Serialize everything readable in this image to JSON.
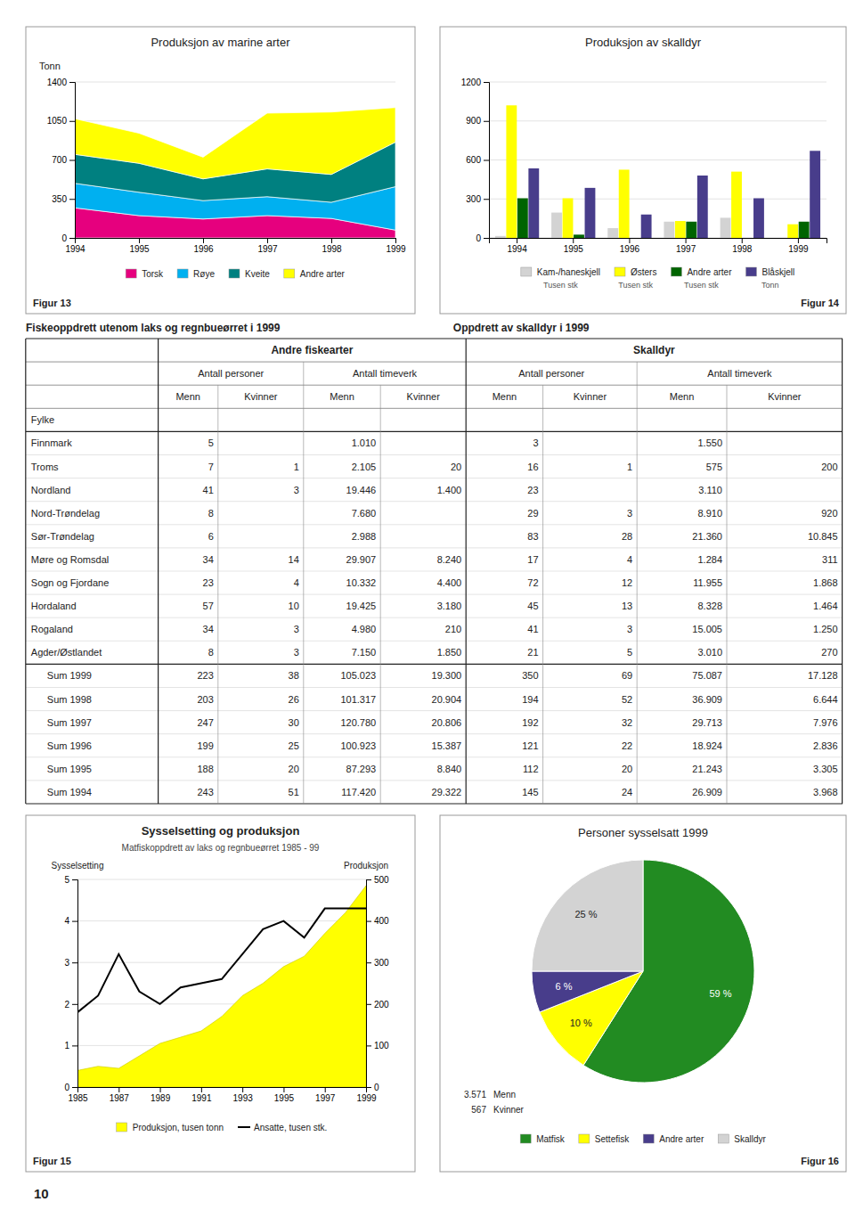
{
  "chart_data": [
    {
      "type": "area",
      "stacked": true,
      "title": "Produksjon av marine arter",
      "y_label": "Tonn",
      "x": [
        1994,
        1995,
        1996,
        1997,
        1998,
        1999
      ],
      "xlim": [
        1994,
        1999
      ],
      "xticks": [
        1994,
        1995,
        1996,
        1997,
        1998,
        1999
      ],
      "ylim": [
        0,
        1400
      ],
      "yticks": [
        0,
        350,
        700,
        1050,
        1400
      ],
      "grid": true,
      "legend": "bottom",
      "series": [
        {
          "name": "Torsk",
          "color": "#e6007e",
          "values": [
            270,
            200,
            170,
            200,
            175,
            70
          ]
        },
        {
          "name": "Røye",
          "color": "#00b0f0",
          "values": [
            220,
            210,
            165,
            170,
            145,
            390
          ]
        },
        {
          "name": "Kveite",
          "color": "#008080",
          "values": [
            260,
            260,
            195,
            250,
            250,
            400
          ]
        },
        {
          "name": "Andre arter",
          "color": "#ffff00",
          "values": [
            320,
            270,
            195,
            500,
            560,
            310
          ]
        }
      ],
      "figure_label": "Figur 13"
    },
    {
      "type": "bar",
      "title": "Produksjon av skalldyr",
      "categories": [
        "1994",
        "1995",
        "1996",
        "1997",
        "1998",
        "1999"
      ],
      "ylim": [
        0,
        1200
      ],
      "yticks": [
        0,
        300,
        600,
        900,
        1200
      ],
      "grid": true,
      "legend": "bottom",
      "series": [
        {
          "name": "Kam-/haneskjell",
          "color": "#d3d3d3",
          "unit": "Tusen stk",
          "values": [
            15,
            195,
            75,
            125,
            155,
            0
          ]
        },
        {
          "name": "Østers",
          "color": "#ffff00",
          "unit": "Tusen stk",
          "values": [
            1020,
            305,
            525,
            130,
            510,
            105
          ]
        },
        {
          "name": "Andre arter",
          "color": "#006400",
          "unit": "Tusen stk",
          "values": [
            305,
            25,
            0,
            125,
            0,
            125
          ]
        },
        {
          "name": "Blåskjell",
          "color": "#483d8b",
          "unit": "Tonn",
          "values": [
            535,
            385,
            180,
            480,
            305,
            670
          ]
        }
      ],
      "figure_label": "Figur 14"
    },
    {
      "type": "table",
      "title": "Fiskeoppdrett utenom laks og regnbueørret i 1999",
      "subtitle": "Oppdrett av skalldyr i 1999",
      "header": [
        [
          "Andre fiskearter",
          "Skalldyr"
        ],
        [
          "Antall personer",
          "Antall timeverk",
          "Antall personer",
          "Antall timeverk"
        ],
        [
          "Menn",
          "Kvinner",
          "Menn",
          "Kvinner",
          "Menn",
          "Kvinner",
          "Menn",
          "Kvinner"
        ]
      ],
      "row_header": "Fylke",
      "rows": [
        {
          "name": "Finnmark",
          "values": [
            5,
            null,
            1010,
            null,
            3,
            null,
            1550,
            null
          ],
          "value_labels": [
            "5",
            null,
            "1.010",
            null,
            "3",
            null,
            "1.550",
            null
          ]
        },
        {
          "name": "Troms",
          "values": [
            7,
            1,
            2105,
            20,
            16,
            1,
            575,
            200
          ],
          "value_labels": [
            "7",
            "1",
            "2.105",
            "20",
            "16",
            "1",
            "575",
            "200"
          ]
        },
        {
          "name": "Nordland",
          "values": [
            41,
            3,
            19446,
            1400,
            23,
            null,
            3110,
            null
          ],
          "value_labels": [
            "41",
            "3",
            "19.446",
            "1.400",
            "23",
            null,
            "3.110",
            null
          ]
        },
        {
          "name": "Nord-Trøndelag",
          "values": [
            8,
            null,
            7680,
            null,
            29,
            3,
            8910,
            920
          ],
          "value_labels": [
            "8",
            null,
            "7.680",
            null,
            "29",
            "3",
            "8.910",
            "920"
          ]
        },
        {
          "name": "Sør-Trøndelag",
          "values": [
            6,
            null,
            2988,
            null,
            83,
            28,
            21360,
            10845
          ],
          "value_labels": [
            "6",
            null,
            "2.988",
            null,
            "83",
            "28",
            "21.360",
            "10.845"
          ]
        },
        {
          "name": "Møre og Romsdal",
          "values": [
            34,
            14,
            29907,
            8240,
            17,
            4,
            1284,
            311
          ],
          "value_labels": [
            "34",
            "14",
            "29.907",
            "8.240",
            "17",
            "4",
            "1.284",
            "311"
          ]
        },
        {
          "name": "Sogn og Fjordane",
          "values": [
            23,
            4,
            10332,
            4400,
            72,
            12,
            11955,
            1868
          ],
          "value_labels": [
            "23",
            "4",
            "10.332",
            "4.400",
            "72",
            "12",
            "11.955",
            "1.868"
          ]
        },
        {
          "name": "Hordaland",
          "values": [
            57,
            10,
            19425,
            3180,
            45,
            13,
            8328,
            1464
          ],
          "value_labels": [
            "57",
            "10",
            "19.425",
            "3.180",
            "45",
            "13",
            "8.328",
            "1.464"
          ]
        },
        {
          "name": "Rogaland",
          "values": [
            34,
            3,
            4980,
            210,
            41,
            3,
            15005,
            1250
          ],
          "value_labels": [
            "34",
            "3",
            "4.980",
            "210",
            "41",
            "3",
            "15.005",
            "1.250"
          ]
        },
        {
          "name": "Agder/Østlandet",
          "values": [
            8,
            3,
            7150,
            1850,
            21,
            5,
            3010,
            270
          ],
          "value_labels": [
            "8",
            "3",
            "7.150",
            "1.850",
            "21",
            "5",
            "3.010",
            "270"
          ]
        }
      ],
      "sum_rows": [
        {
          "name": "Sum 1999",
          "values": [
            223,
            38,
            105023,
            19300,
            350,
            69,
            75087,
            17128
          ],
          "value_labels": [
            "223",
            "38",
            "105.023",
            "19.300",
            "350",
            "69",
            "75.087",
            "17.128"
          ]
        },
        {
          "name": "Sum 1998",
          "values": [
            203,
            26,
            101317,
            20904,
            194,
            52,
            36909,
            6644
          ],
          "value_labels": [
            "203",
            "26",
            "101.317",
            "20.904",
            "194",
            "52",
            "36.909",
            "6.644"
          ]
        },
        {
          "name": "Sum 1997",
          "values": [
            247,
            30,
            120780,
            20806,
            192,
            32,
            29713,
            7976
          ],
          "value_labels": [
            "247",
            "30",
            "120.780",
            "20.806",
            "192",
            "32",
            "29.713",
            "7.976"
          ]
        },
        {
          "name": "Sum 1996",
          "values": [
            199,
            25,
            100923,
            15387,
            121,
            22,
            18924,
            2836
          ],
          "value_labels": [
            "199",
            "25",
            "100.923",
            "15.387",
            "121",
            "22",
            "18.924",
            "2.836"
          ]
        },
        {
          "name": "Sum 1995",
          "values": [
            188,
            20,
            87293,
            8840,
            112,
            20,
            21243,
            3305
          ],
          "value_labels": [
            "188",
            "20",
            "87.293",
            "8.840",
            "112",
            "20",
            "21.243",
            "3.305"
          ]
        },
        {
          "name": "Sum 1994",
          "values": [
            243,
            51,
            117420,
            29322,
            145,
            24,
            26909,
            3968
          ],
          "value_labels": [
            "243",
            "51",
            "117.420",
            "29.322",
            "145",
            "24",
            "26.909",
            "3.968"
          ]
        }
      ]
    },
    {
      "type": "line",
      "title": "Sysselsetting og produksjon",
      "subtitle": "Matfiskoppdrett av laks og regnbueørret 1985 - 99",
      "y_label": "Sysselsetting",
      "y2_label": "Produksjon",
      "x": [
        1985,
        1986,
        1987,
        1988,
        1989,
        1990,
        1991,
        1992,
        1993,
        1994,
        1995,
        1996,
        1997,
        1998,
        1999
      ],
      "xlim": [
        1985,
        1999
      ],
      "xticks": [
        1985,
        1987,
        1989,
        1991,
        1993,
        1995,
        1997,
        1999
      ],
      "ylim": [
        0,
        5
      ],
      "yticks": [
        0,
        1,
        2,
        3,
        4,
        5
      ],
      "y2lim": [
        0,
        500
      ],
      "y2ticks": [
        0,
        100,
        200,
        300,
        400,
        500
      ],
      "grid": true,
      "legend": "bottom",
      "series": [
        {
          "name": "Produksjon, tusen tonn",
          "type": "area",
          "axis": "y2",
          "color": "#ffff00",
          "values": [
            40,
            50,
            45,
            75,
            105,
            120,
            135,
            170,
            220,
            250,
            290,
            315,
            370,
            420,
            485
          ]
        },
        {
          "name": "Ansatte, tusen stk.",
          "type": "line",
          "color": "#000000",
          "values": [
            1.8,
            2.2,
            3.2,
            2.3,
            2.0,
            2.4,
            2.5,
            2.6,
            3.2,
            3.8,
            4.0,
            3.6,
            4.3,
            4.3,
            4.3
          ]
        }
      ],
      "figure_label": "Figur 15"
    },
    {
      "type": "pie",
      "title": "Personer sysselsatt 1999",
      "categories": [
        "Matfisk",
        "Settefisk",
        "Andre arter",
        "Skalldyr"
      ],
      "values": [
        59,
        10,
        6,
        25
      ],
      "value_labels": [
        "59 %",
        "10 %",
        "6 %",
        "25 %"
      ],
      "data_labels": true,
      "colors": [
        "#228B22",
        "#ffff00",
        "#483d8b",
        "#d3d3d3"
      ],
      "legend": "bottom",
      "annotations": [
        {
          "text": "Menn",
          "value": 3571,
          "value_label": "3.571"
        },
        {
          "text": "Kvinner",
          "value": 567,
          "value_label": "567"
        }
      ],
      "figure_label": "Figur 16"
    }
  ],
  "page_number": "10"
}
